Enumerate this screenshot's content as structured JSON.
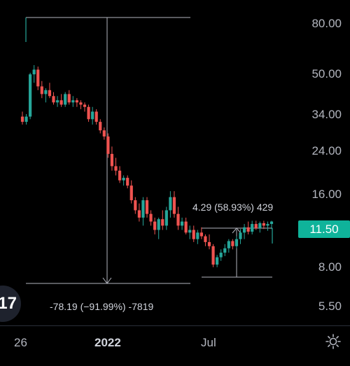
{
  "chart_data": {
    "type": "candlestick",
    "y_scale": "log",
    "ylim": [
      4.6,
      98
    ],
    "y_ticks": [
      "80.00",
      "50.00",
      "34.00",
      "24.00",
      "16.00",
      "11.50",
      "8.00",
      "5.50"
    ],
    "x_ticks": [
      "26",
      "2022",
      "Jul"
    ],
    "last_price": "11.50",
    "candles": [
      {
        "o": 36,
        "h": 38,
        "l": 33,
        "c": 34
      },
      {
        "o": 34,
        "h": 37,
        "l": 33,
        "c": 36
      },
      {
        "o": 36,
        "h": 58,
        "l": 35,
        "c": 57
      },
      {
        "o": 57,
        "h": 63,
        "l": 52,
        "c": 60
      },
      {
        "o": 60,
        "h": 62,
        "l": 48,
        "c": 50
      },
      {
        "o": 50,
        "h": 53,
        "l": 44,
        "c": 46
      },
      {
        "o": 46,
        "h": 49,
        "l": 42,
        "c": 48
      },
      {
        "o": 48,
        "h": 52,
        "l": 44,
        "c": 45
      },
      {
        "o": 45,
        "h": 47,
        "l": 41,
        "c": 42
      },
      {
        "o": 42,
        "h": 45,
        "l": 40,
        "c": 43
      },
      {
        "o": 43,
        "h": 46,
        "l": 40,
        "c": 41
      },
      {
        "o": 41,
        "h": 47,
        "l": 40,
        "c": 46
      },
      {
        "o": 46,
        "h": 48,
        "l": 41,
        "c": 42
      },
      {
        "o": 42,
        "h": 45,
        "l": 40,
        "c": 43
      },
      {
        "o": 43,
        "h": 44,
        "l": 40,
        "c": 42
      },
      {
        "o": 42,
        "h": 43,
        "l": 39,
        "c": 41
      },
      {
        "o": 41,
        "h": 42,
        "l": 38,
        "c": 40
      },
      {
        "o": 40,
        "h": 41,
        "l": 34,
        "c": 35
      },
      {
        "o": 35,
        "h": 40,
        "l": 33,
        "c": 38
      },
      {
        "o": 38,
        "h": 39,
        "l": 33,
        "c": 34
      },
      {
        "o": 34,
        "h": 35,
        "l": 30,
        "c": 31
      },
      {
        "o": 31,
        "h": 32,
        "l": 28,
        "c": 29
      },
      {
        "o": 29,
        "h": 30,
        "l": 23,
        "c": 24
      },
      {
        "o": 24,
        "h": 26,
        "l": 20,
        "c": 21
      },
      {
        "o": 21,
        "h": 23,
        "l": 19,
        "c": 20
      },
      {
        "o": 20,
        "h": 21,
        "l": 17.5,
        "c": 18
      },
      {
        "o": 18,
        "h": 19,
        "l": 17,
        "c": 18.5
      },
      {
        "o": 18.5,
        "h": 19,
        "l": 16.5,
        "c": 17
      },
      {
        "o": 17,
        "h": 18,
        "l": 14,
        "c": 14.5
      },
      {
        "o": 14.5,
        "h": 15,
        "l": 12.5,
        "c": 13
      },
      {
        "o": 13,
        "h": 14,
        "l": 11.5,
        "c": 12
      },
      {
        "o": 12,
        "h": 15,
        "l": 11,
        "c": 14.5
      },
      {
        "o": 14.5,
        "h": 15,
        "l": 12,
        "c": 12.5
      },
      {
        "o": 12.5,
        "h": 13,
        "l": 11,
        "c": 11.5
      },
      {
        "o": 11.5,
        "h": 12,
        "l": 10,
        "c": 10.5
      },
      {
        "o": 10.5,
        "h": 12,
        "l": 9.5,
        "c": 11.8
      },
      {
        "o": 11.8,
        "h": 13,
        "l": 10.5,
        "c": 11
      },
      {
        "o": 11,
        "h": 13.5,
        "l": 10.5,
        "c": 13
      },
      {
        "o": 13,
        "h": 16,
        "l": 12,
        "c": 15
      },
      {
        "o": 15,
        "h": 16,
        "l": 12,
        "c": 12.5
      },
      {
        "o": 12.5,
        "h": 13.5,
        "l": 10.5,
        "c": 11
      },
      {
        "o": 11,
        "h": 12,
        "l": 10.5,
        "c": 11.5
      },
      {
        "o": 11.5,
        "h": 12,
        "l": 10,
        "c": 10.2
      },
      {
        "o": 10.2,
        "h": 11,
        "l": 9.5,
        "c": 10.5
      },
      {
        "o": 10.5,
        "h": 11,
        "l": 9.2,
        "c": 9.5
      },
      {
        "o": 9.5,
        "h": 10.5,
        "l": 9,
        "c": 10.2
      },
      {
        "o": 10.2,
        "h": 10.8,
        "l": 9.5,
        "c": 9.8
      },
      {
        "o": 9.8,
        "h": 10,
        "l": 8.8,
        "c": 9.2
      },
      {
        "o": 9.2,
        "h": 10,
        "l": 8.5,
        "c": 8.8
      },
      {
        "o": 8.8,
        "h": 9,
        "l": 7,
        "c": 7.2
      },
      {
        "o": 7.2,
        "h": 8,
        "l": 7,
        "c": 7.8
      },
      {
        "o": 7.8,
        "h": 8.5,
        "l": 7.5,
        "c": 8.2
      },
      {
        "o": 8.2,
        "h": 9,
        "l": 7.9,
        "c": 8.6
      },
      {
        "o": 8.6,
        "h": 9.5,
        "l": 8.2,
        "c": 9.3
      },
      {
        "o": 9.3,
        "h": 9.5,
        "l": 8.5,
        "c": 8.8
      },
      {
        "o": 8.8,
        "h": 9.8,
        "l": 8.6,
        "c": 9.5
      },
      {
        "o": 9.5,
        "h": 10.6,
        "l": 9,
        "c": 10.2
      },
      {
        "o": 10.2,
        "h": 11.2,
        "l": 9.5,
        "c": 10.8
      },
      {
        "o": 10.8,
        "h": 11.5,
        "l": 10,
        "c": 10.3
      },
      {
        "o": 10.3,
        "h": 11.6,
        "l": 10,
        "c": 11.2
      },
      {
        "o": 11.2,
        "h": 11.6,
        "l": 10.5,
        "c": 10.7
      },
      {
        "o": 10.7,
        "h": 11.5,
        "l": 10.2,
        "c": 11.3
      },
      {
        "o": 11.3,
        "h": 11.6,
        "l": 10.6,
        "c": 11
      },
      {
        "o": 11,
        "h": 11.5,
        "l": 10.4,
        "c": 11.2
      },
      {
        "o": 11.2,
        "h": 11.6,
        "l": 10.6,
        "c": 11.5
      }
    ]
  },
  "measure_upper": {
    "label": "4.29 (58.93%) 429"
  },
  "measure_lower": {
    "label": "-78.19 (−91.99%) -7819"
  },
  "logo": {
    "text": "17"
  },
  "colors": {
    "up": "#26a69a",
    "down": "#ef5350",
    "badge": "#0fb39a",
    "measure_line": "#b2b5be"
  },
  "icons": {
    "settings": "gear-icon"
  }
}
